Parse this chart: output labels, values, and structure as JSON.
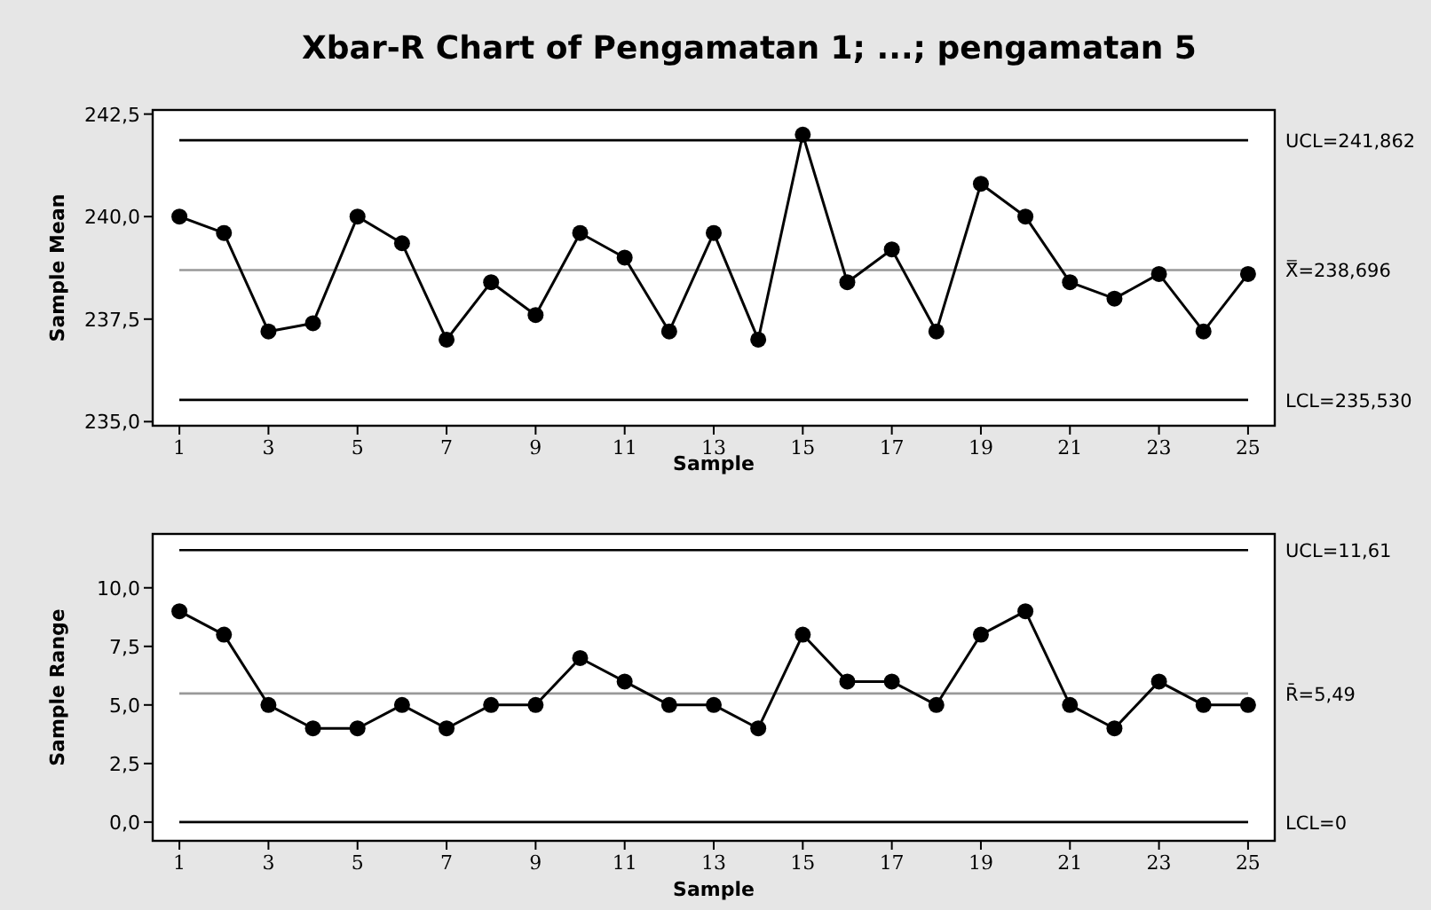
{
  "chart_data": [
    {
      "type": "line",
      "title": "Xbar-R Chart of Pengamatan 1; ...; pengamatan 5",
      "xlabel": "Sample",
      "ylabel": "Sample Mean",
      "x": [
        1,
        2,
        3,
        4,
        5,
        6,
        7,
        8,
        9,
        10,
        11,
        12,
        13,
        14,
        15,
        16,
        17,
        18,
        19,
        20,
        21,
        22,
        23,
        24,
        25
      ],
      "series": [
        {
          "color": "#000000",
          "values": [
            240.0,
            239.6,
            237.2,
            237.4,
            240.0,
            239.35,
            237.0,
            238.4,
            237.6,
            239.6,
            239.0,
            237.2,
            239.6,
            237.0,
            242.0,
            238.4,
            239.2,
            237.2,
            240.8,
            240.0,
            238.4,
            238.0,
            238.6,
            237.2,
            238.6
          ]
        }
      ],
      "xlim": [
        0.4,
        25.6
      ],
      "xticks": [
        1,
        3,
        5,
        7,
        9,
        11,
        13,
        15,
        17,
        19,
        21,
        23,
        25
      ],
      "ylim": [
        234.9,
        242.6
      ],
      "yticks": [
        {
          "value": 235,
          "label": "235,0"
        },
        {
          "value": 237.5,
          "label": "237,5"
        },
        {
          "value": 240,
          "label": "240,0"
        },
        {
          "value": 242.5,
          "label": "242,5"
        }
      ],
      "ref_lines": [
        {
          "axis": "y",
          "value": 241.862,
          "label": "UCL=241,862",
          "color": "#000000"
        },
        {
          "axis": "y",
          "value": 238.696,
          "label": "X̿=238,696",
          "color": "#999999"
        },
        {
          "axis": "y",
          "value": 235.53,
          "label": "LCL=235,530",
          "color": "#000000"
        }
      ],
      "marker": "circle",
      "grid": false
    },
    {
      "type": "line",
      "xlabel": "Sample",
      "ylabel": "Sample Range",
      "x": [
        1,
        2,
        3,
        4,
        5,
        6,
        7,
        8,
        9,
        10,
        11,
        12,
        13,
        14,
        15,
        16,
        17,
        18,
        19,
        20,
        21,
        22,
        23,
        24,
        25
      ],
      "series": [
        {
          "color": "#000000",
          "values": [
            9,
            8,
            5,
            4,
            4,
            5,
            4,
            5,
            5,
            7,
            6,
            5,
            5,
            4,
            8,
            6,
            6,
            5,
            8,
            9,
            5,
            4,
            6,
            5,
            5
          ]
        }
      ],
      "xlim": [
        0.4,
        25.6
      ],
      "xticks": [
        1,
        3,
        5,
        7,
        9,
        11,
        13,
        15,
        17,
        19,
        21,
        23,
        25
      ],
      "ylim": [
        -0.8,
        12.3
      ],
      "yticks": [
        {
          "value": 0,
          "label": "0,0"
        },
        {
          "value": 2.5,
          "label": "2,5"
        },
        {
          "value": 5,
          "label": "5,0"
        },
        {
          "value": 7.5,
          "label": "7,5"
        },
        {
          "value": 10,
          "label": "10,0"
        }
      ],
      "ref_lines": [
        {
          "axis": "y",
          "value": 11.61,
          "label": "UCL=11,61",
          "color": "#000000"
        },
        {
          "axis": "y",
          "value": 5.49,
          "label": "R̄=5,49",
          "color": "#999999"
        },
        {
          "axis": "y",
          "value": 0,
          "label": "LCL=0",
          "color": "#000000"
        }
      ],
      "marker": "circle",
      "grid": false
    }
  ]
}
